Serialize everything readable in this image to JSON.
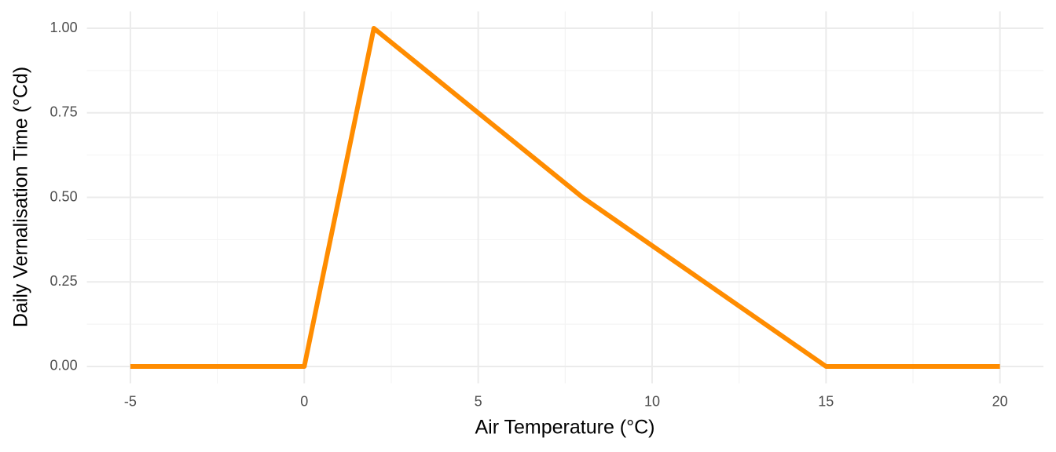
{
  "chart_data": {
    "type": "line",
    "x_label": "Air Temperature (°C)",
    "y_label": "Daily Vernalisation Time (°Cd)",
    "x": [
      -5,
      0,
      2,
      8,
      15,
      20
    ],
    "values": [
      0,
      0,
      1,
      0.5,
      0,
      0
    ],
    "color": "#ff8c00",
    "xlim": [
      -6.25,
      21.25
    ],
    "xticks": [
      -5,
      0,
      5,
      10,
      15,
      20
    ],
    "ylim": [
      -0.05,
      1.05
    ],
    "yticks": [
      {
        "value": 0,
        "label": "0.00"
      },
      0.25,
      {
        "value": 0.5,
        "label": "0.50"
      },
      0.75,
      {
        "value": 1,
        "label": "1.00"
      }
    ],
    "grid": true
  }
}
